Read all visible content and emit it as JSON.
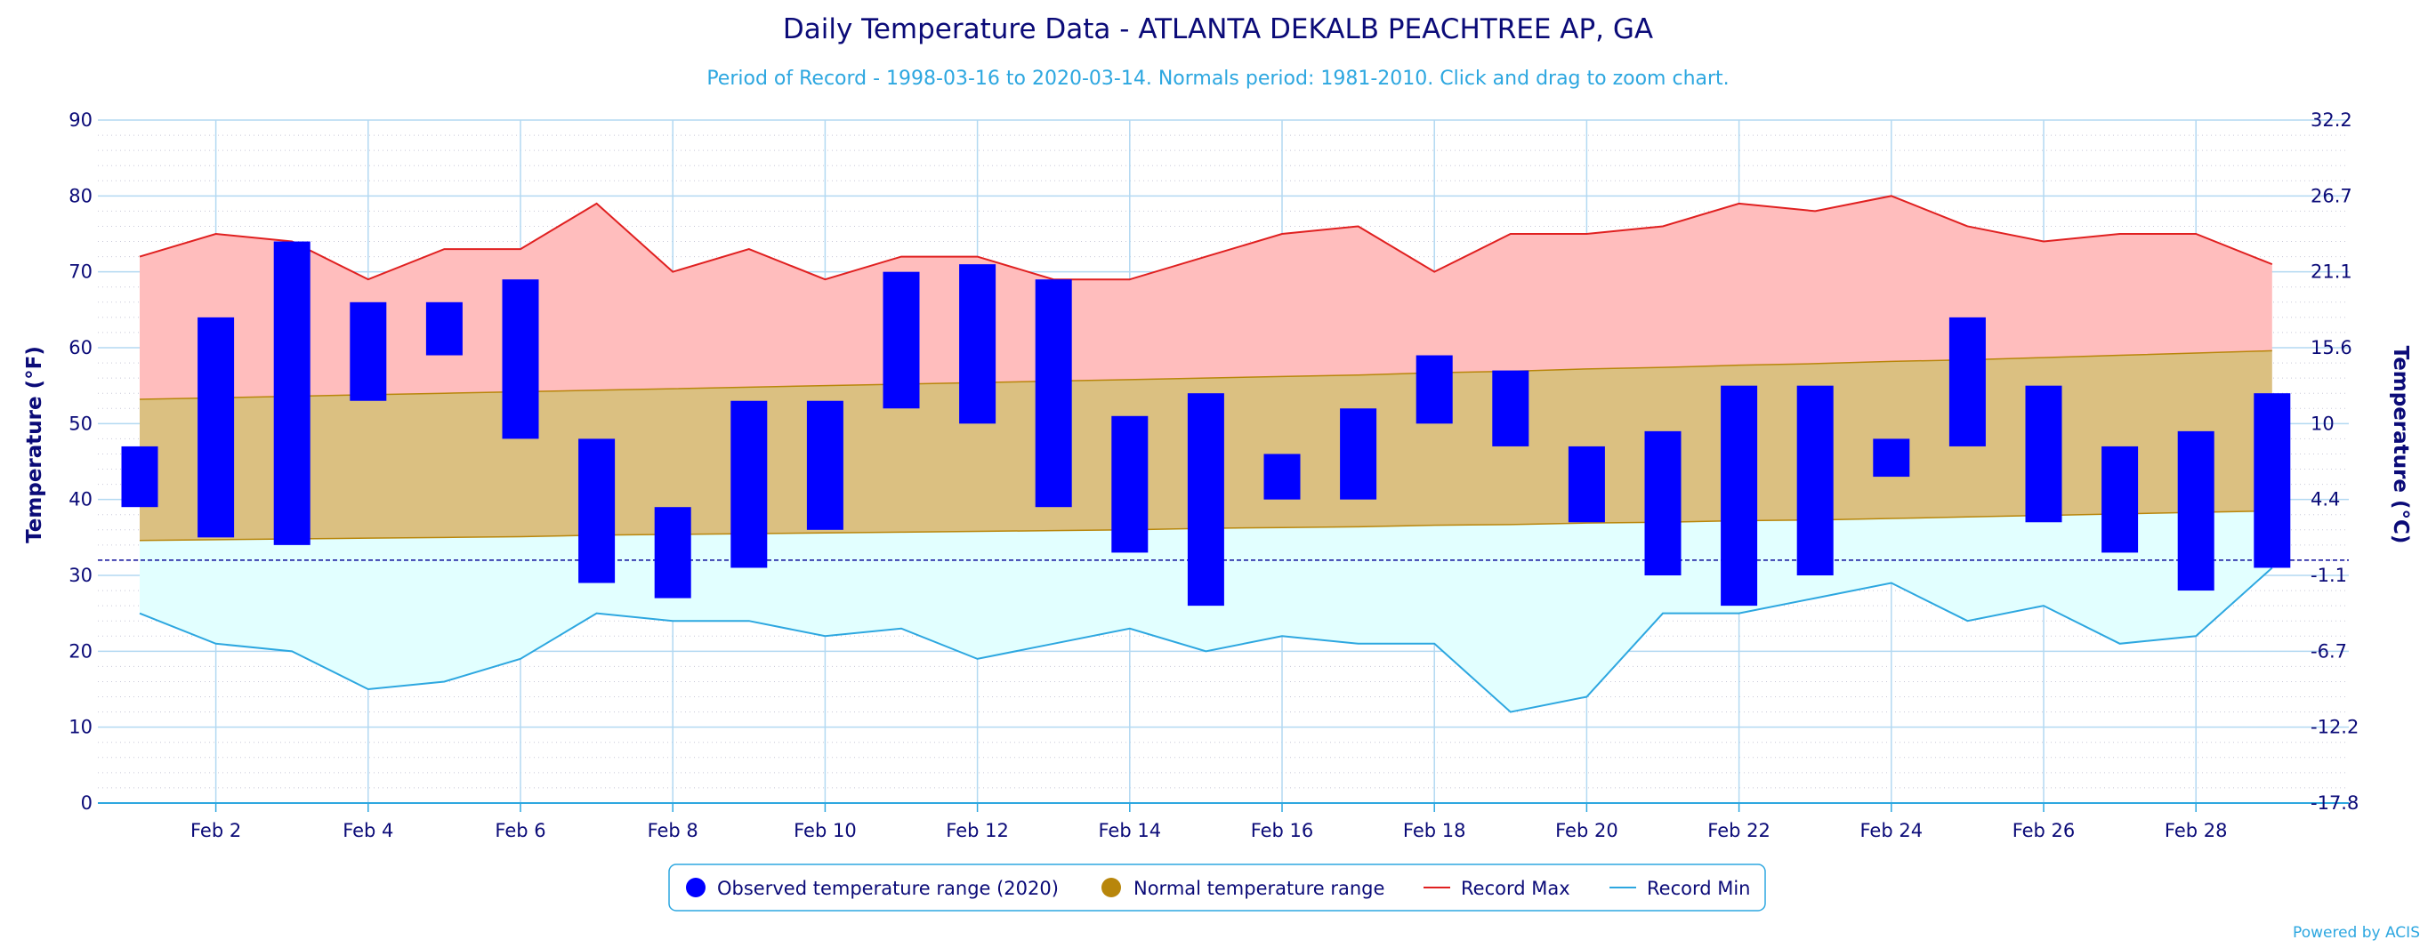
{
  "chart_data": {
    "type": "bar",
    "title": "Daily Temperature Data - ATLANTA DEKALB PEACHTREE AP, GA",
    "subtitle": "Period of Record - 1998-03-16 to 2020-03-14. Normals period: 1981-2010. Click and drag to zoom chart.",
    "ylabel": "Temperature (°F)",
    "ylabel_right": "Temperature (°C)",
    "ylim": [
      0,
      90
    ],
    "xlim": [
      1,
      29
    ],
    "grid": true,
    "legend_position": "bottom",
    "y_ticks": [
      0,
      10,
      20,
      30,
      40,
      50,
      60,
      70,
      80,
      90
    ],
    "y_ticks_right": [
      "32.2",
      "26.7",
      "21.1",
      "15.6",
      "10",
      "4.4",
      "-1.1",
      "-6.7",
      "-12.2",
      "-17.8"
    ],
    "x_ticks": [
      {
        "day": 2,
        "label": "Feb 2"
      },
      {
        "day": 4,
        "label": "Feb 4"
      },
      {
        "day": 6,
        "label": "Feb 6"
      },
      {
        "day": 8,
        "label": "Feb 8"
      },
      {
        "day": 10,
        "label": "Feb 10"
      },
      {
        "day": 12,
        "label": "Feb 12"
      },
      {
        "day": 14,
        "label": "Feb 14"
      },
      {
        "day": 16,
        "label": "Feb 16"
      },
      {
        "day": 18,
        "label": "Feb 18"
      },
      {
        "day": 20,
        "label": "Feb 20"
      },
      {
        "day": 22,
        "label": "Feb 22"
      },
      {
        "day": 24,
        "label": "Feb 24"
      },
      {
        "day": 26,
        "label": "Feb 26"
      },
      {
        "day": 28,
        "label": "Feb 28"
      }
    ],
    "freezing_line": 32,
    "days": [
      1,
      2,
      3,
      4,
      5,
      6,
      7,
      8,
      9,
      10,
      11,
      12,
      13,
      14,
      15,
      16,
      17,
      18,
      19,
      20,
      21,
      22,
      23,
      24,
      25,
      26,
      27,
      28,
      29
    ],
    "series": [
      {
        "name": "Observed temperature range (2020)",
        "color": "#0000ff",
        "low": [
          39,
          35,
          34,
          53,
          59,
          48,
          29,
          27,
          31,
          36,
          52,
          50,
          39,
          33,
          26,
          40,
          40,
          50,
          47,
          37,
          30,
          26,
          30,
          43,
          47,
          37,
          33,
          28,
          31
        ],
        "high": [
          47,
          64,
          74,
          66,
          66,
          69,
          48,
          39,
          53,
          53,
          70,
          71,
          69,
          51,
          54,
          46,
          52,
          59,
          57,
          47,
          49,
          55,
          55,
          48,
          64,
          55,
          47,
          49,
          54
        ]
      },
      {
        "name": "Normal temperature range",
        "color": "#b8860b",
        "low": [
          34.6,
          34.7,
          34.8,
          34.9,
          35.0,
          35.1,
          35.3,
          35.4,
          35.5,
          35.6,
          35.7,
          35.8,
          35.9,
          36.0,
          36.2,
          36.3,
          36.4,
          36.6,
          36.7,
          36.9,
          37.0,
          37.2,
          37.3,
          37.5,
          37.7,
          37.9,
          38.1,
          38.3,
          38.5
        ],
        "high": [
          53.2,
          53.4,
          53.6,
          53.8,
          54.0,
          54.2,
          54.4,
          54.6,
          54.8,
          55.0,
          55.2,
          55.4,
          55.6,
          55.8,
          56.0,
          56.2,
          56.4,
          56.7,
          56.9,
          57.2,
          57.4,
          57.7,
          57.9,
          58.2,
          58.4,
          58.7,
          59.0,
          59.3,
          59.6
        ]
      },
      {
        "name": "Record Max",
        "color": "#e02020",
        "values": [
          72,
          75,
          74,
          69,
          73,
          73,
          79,
          70,
          73,
          69,
          72,
          72,
          69,
          69,
          72,
          75,
          76,
          70,
          75,
          75,
          76,
          79,
          78,
          80,
          76,
          74,
          75,
          75,
          71
        ]
      },
      {
        "name": "Record Min",
        "color": "#2da7e0",
        "values": [
          25,
          21,
          20,
          15,
          16,
          19,
          25,
          24,
          24,
          22,
          23,
          19,
          21,
          23,
          20,
          22,
          21,
          21,
          12,
          14,
          25,
          25,
          27,
          29,
          24,
          26,
          21,
          22,
          31
        ]
      }
    ],
    "colors": {
      "record_fill": "#ffbdbd",
      "normal_fill": "#dbc081",
      "min_fill": "#e2ffff",
      "grid_major": "#b3d9f2",
      "grid_minor": "#c8c8d8",
      "axis_line": "#2da7e0",
      "text": "#0b0b78",
      "freezing_line": "#0b0b9a"
    }
  },
  "legend": {
    "items": [
      {
        "label": "Observed temperature range (2020)",
        "marker": "circle",
        "color": "#0000ff"
      },
      {
        "label": "Normal temperature range",
        "marker": "circle",
        "color": "#b8860b"
      },
      {
        "label": "Record Max",
        "marker": "line",
        "color": "#e02020"
      },
      {
        "label": "Record Min",
        "marker": "line",
        "color": "#2da7e0"
      }
    ]
  },
  "credit": "Powered by ACIS"
}
